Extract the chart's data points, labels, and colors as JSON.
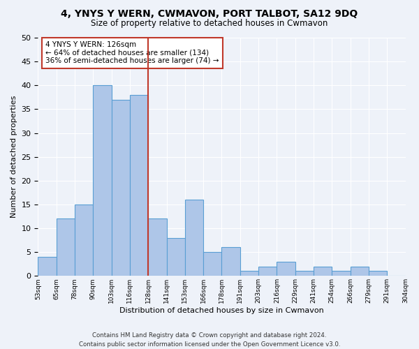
{
  "title": "4, YNYS Y WERN, CWMAVON, PORT TALBOT, SA12 9DQ",
  "subtitle": "Size of property relative to detached houses in Cwmavon",
  "xlabel": "Distribution of detached houses by size in Cwmavon",
  "ylabel": "Number of detached properties",
  "bar_values": [
    4,
    12,
    15,
    40,
    37,
    38,
    12,
    8,
    16,
    5,
    6,
    1,
    2,
    3,
    1,
    2,
    1,
    2,
    1,
    0
  ],
  "bin_labels": [
    "53sqm",
    "65sqm",
    "78sqm",
    "90sqm",
    "103sqm",
    "116sqm",
    "128sqm",
    "141sqm",
    "153sqm",
    "166sqm",
    "178sqm",
    "191sqm",
    "203sqm",
    "216sqm",
    "229sqm",
    "241sqm",
    "254sqm",
    "266sqm",
    "279sqm",
    "291sqm",
    "304sqm"
  ],
  "bar_color": "#aec6e8",
  "bar_edge_color": "#5a9fd4",
  "vline_color": "#c0392b",
  "vline_x": 6.0,
  "annotation_text": "4 YNYS Y WERN: 126sqm\n← 64% of detached houses are smaller (134)\n36% of semi-detached houses are larger (74) →",
  "annotation_box_color": "#ffffff",
  "annotation_box_edge": "#c0392b",
  "ylim": [
    0,
    50
  ],
  "yticks": [
    0,
    5,
    10,
    15,
    20,
    25,
    30,
    35,
    40,
    45,
    50
  ],
  "footer": "Contains HM Land Registry data © Crown copyright and database right 2024.\nContains public sector information licensed under the Open Government Licence v3.0.",
  "bg_color": "#eef2f9",
  "grid_color": "#ffffff"
}
